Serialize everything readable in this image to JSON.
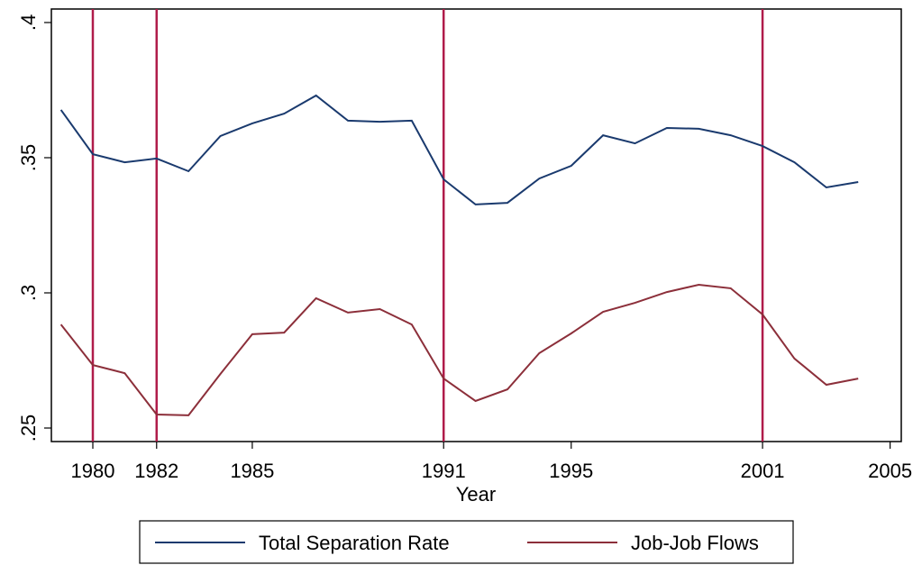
{
  "chart_data": {
    "type": "line",
    "x_label": "Year",
    "x": [
      1979,
      1980,
      1981,
      1982,
      1983,
      1984,
      1985,
      1986,
      1987,
      1988,
      1989,
      1990,
      1991,
      1992,
      1993,
      1994,
      1995,
      1996,
      1997,
      1998,
      1999,
      2000,
      2001,
      2002,
      2003,
      2004
    ],
    "series": [
      {
        "name": "Total Separation Rate",
        "color": "#1a3a6e",
        "values": [
          0.3677,
          0.3513,
          0.3483,
          0.3497,
          0.345,
          0.358,
          0.3627,
          0.3663,
          0.373,
          0.3637,
          0.3633,
          0.3637,
          0.342,
          0.3327,
          0.3333,
          0.3423,
          0.347,
          0.3583,
          0.3553,
          0.361,
          0.3607,
          0.3583,
          0.3543,
          0.3483,
          0.339,
          0.341
        ]
      },
      {
        "name": "Job-Job Flows",
        "color": "#8c2f3a",
        "values": [
          0.2883,
          0.2733,
          0.2703,
          0.255,
          0.2547,
          0.27,
          0.2847,
          0.2853,
          0.298,
          0.2927,
          0.294,
          0.2883,
          0.2683,
          0.26,
          0.2643,
          0.2777,
          0.285,
          0.293,
          0.2963,
          0.3003,
          0.303,
          0.3017,
          0.292,
          0.2757,
          0.266,
          0.2683
        ]
      }
    ],
    "vlines": [
      1980,
      1982,
      1991,
      2001
    ],
    "vline_color": "#b01c4a",
    "xlim": [
      1978.7,
      2005.35
    ],
    "xticks": [
      1980,
      1982,
      1985,
      1991,
      1995,
      2001,
      2005
    ],
    "ylim": [
      0.245,
      0.405
    ],
    "yticks": [
      {
        "value": 0.25,
        "label": ".25"
      },
      {
        "value": 0.3,
        "label": ".3"
      },
      {
        "value": 0.35,
        "label": ".35"
      },
      {
        "value": 0.4,
        "label": ".4"
      }
    ],
    "legend": "bottom"
  }
}
